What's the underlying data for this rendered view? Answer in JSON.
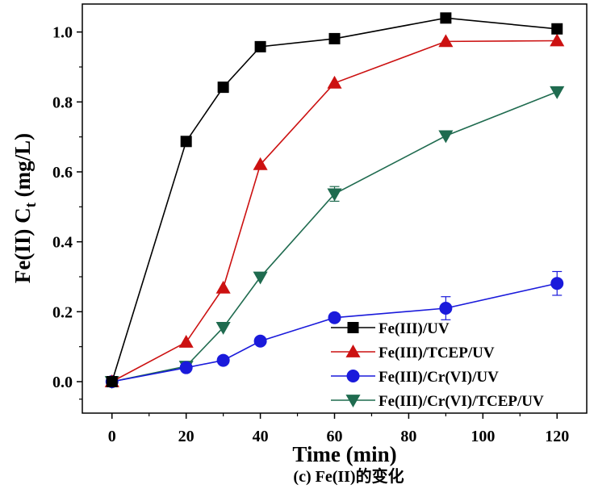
{
  "chart_data": {
    "type": "line",
    "x": [
      0,
      20,
      30,
      40,
      60,
      90,
      120
    ],
    "xlabel": "Time (min)",
    "ylabel_main": "Fe(II) C",
    "ylabel_sub": "t",
    "ylabel_unit": " (mg/L)",
    "xlim": [
      -8,
      128
    ],
    "ylim": [
      -0.09,
      1.08
    ],
    "xticks": [
      0,
      20,
      40,
      60,
      80,
      100,
      120
    ],
    "yticks": [
      0.0,
      0.2,
      0.4,
      0.6,
      0.8,
      1.0
    ],
    "ytick_labels": [
      "0.0",
      "0.2",
      "0.4",
      "0.6",
      "0.8",
      "1.0"
    ],
    "caption": "(c) Fe(II)的变化",
    "legend_position": "bottom-right",
    "grid": false,
    "series": [
      {
        "name": "Fe(III)/UV",
        "color": "#000000",
        "marker": "square",
        "values": [
          0.0,
          0.687,
          0.842,
          0.958,
          0.981,
          1.04,
          1.009
        ]
      },
      {
        "name": "Fe(III)/TCEP/UV",
        "color": "#cc1111",
        "marker": "triangle-up",
        "values": [
          0.0,
          0.113,
          0.268,
          0.621,
          0.854,
          0.973,
          0.975
        ]
      },
      {
        "name": "Fe(III)/Cr(VI)/UV",
        "color": "#1a1adb",
        "marker": "circle",
        "values": [
          0.0,
          0.04,
          0.061,
          0.116,
          0.183,
          0.21,
          0.281
        ],
        "errors": [
          0,
          0,
          0,
          0,
          0,
          0.033,
          0.034
        ]
      },
      {
        "name": "Fe(III)/Cr(VI)/TCEP/UV",
        "color": "#1f6b4f",
        "marker": "triangle-down",
        "values": [
          0.0,
          0.044,
          0.155,
          0.299,
          0.537,
          0.703,
          0.829
        ],
        "errors": [
          0,
          0,
          0,
          0,
          0.021,
          0,
          0
        ]
      }
    ]
  }
}
